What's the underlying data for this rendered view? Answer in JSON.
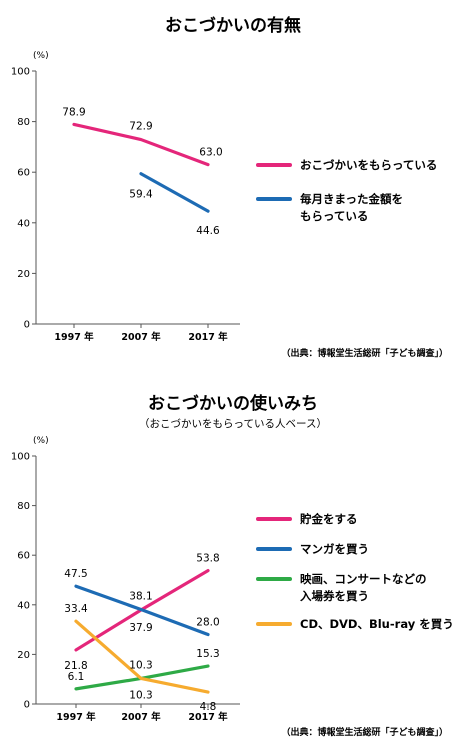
{
  "chart_data": [
    {
      "type": "line",
      "title": "おこづかいの有無",
      "unit": "(%)",
      "ylim": [
        0,
        100
      ],
      "yticks": [
        "100",
        "80",
        "60",
        "40",
        "20",
        "0"
      ],
      "categories": [
        "1997 年",
        "2007 年",
        "2017 年"
      ],
      "series": [
        {
          "name": "おこづかいをもらっている",
          "color": "#e4267a",
          "values": [
            78.9,
            72.9,
            63.0
          ],
          "labels": [
            "78.9",
            "72.9",
            "63.0"
          ]
        },
        {
          "name_lines": [
            "毎月きまった金額を",
            "もらっている"
          ],
          "color": "#1d6bb4",
          "values": [
            null,
            59.4,
            44.6
          ],
          "labels": [
            "",
            "59.4",
            "44.6"
          ]
        }
      ],
      "source": "（出典：博報堂生活総研「子ども調査」）"
    },
    {
      "type": "line",
      "title": "おこづかいの使いみち",
      "subtitle": "（おこづかいをもらっている人ベース）",
      "unit": "(%)",
      "ylim": [
        0,
        100
      ],
      "yticks": [
        "100",
        "80",
        "60",
        "40",
        "20",
        "0"
      ],
      "categories": [
        "1997 年",
        "2007 年",
        "2017 年"
      ],
      "series": [
        {
          "name": "貯金をする",
          "color": "#e4267a",
          "values": [
            21.8,
            37.9,
            53.8
          ],
          "labels": [
            "21.8",
            "37.9",
            "53.8"
          ]
        },
        {
          "name": "マンガを買う",
          "color": "#1d6bb4",
          "values": [
            47.5,
            38.1,
            28.0
          ],
          "labels": [
            "47.5",
            "38.1",
            "28.0"
          ]
        },
        {
          "name_lines": [
            "映画、コンサートなどの",
            "入場券を買う"
          ],
          "color": "#2eaa46",
          "values": [
            6.1,
            10.3,
            15.3
          ],
          "labels": [
            "6.1",
            "10.3",
            "15.3"
          ]
        },
        {
          "name": "CD、DVD、Blu-ray を買う",
          "color": "#f6ab2f",
          "values": [
            33.4,
            10.3,
            4.8
          ],
          "labels": [
            "33.4",
            "10.3",
            "4.8"
          ]
        }
      ],
      "source": "（出典：博報堂生活総研「子ども調査」）"
    }
  ]
}
